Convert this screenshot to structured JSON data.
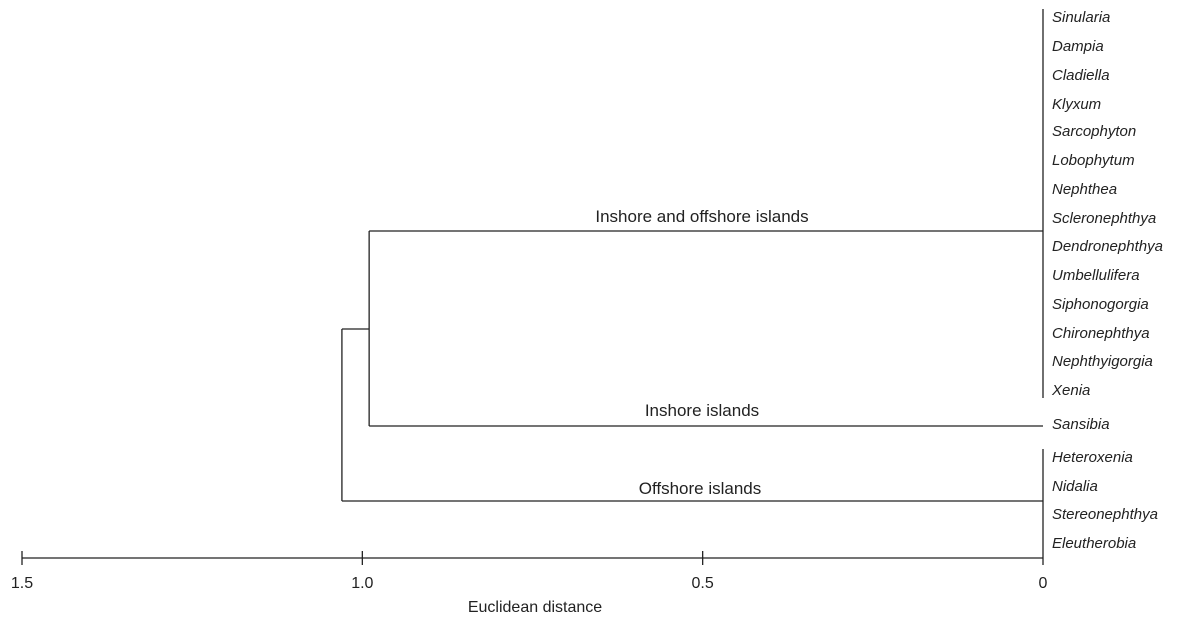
{
  "chart_data": {
    "type": "dendrogram",
    "xlabel": "Euclidean distance",
    "x_ticks": [
      "1.5",
      "1.0",
      "0.5",
      "0"
    ],
    "x_tick_values": [
      1.5,
      1.0,
      0.5,
      0
    ],
    "xlim": [
      1.5,
      0
    ],
    "taxa": [
      "Sinularia",
      "Dampia",
      "Cladiella",
      "Klyxum",
      "Sarcophyton",
      "Lobophytum",
      "Nephthea",
      "Scleronephthya",
      "Dendronephthya",
      "Umbellulifera",
      "Siphonogorgia",
      "Chironephthya",
      "Nephthyigorgia",
      "Xenia",
      "Sansibia",
      "Heteroxenia",
      "Nidalia",
      "Stereonephthya",
      "Eleutherobia"
    ],
    "clusters": [
      {
        "label": "Inshore and offshore islands",
        "members": [
          0,
          13
        ],
        "height": 0.0
      },
      {
        "label": "Inshore islands",
        "members": [
          14,
          14
        ],
        "height": 0.0
      },
      {
        "label": "Offshore islands",
        "members": [
          15,
          18
        ],
        "height": 0.0
      }
    ],
    "merges": [
      {
        "join": [
          "Inshore and offshore islands",
          "Inshore islands"
        ],
        "height": 0.99
      },
      {
        "join": [
          "merge-1",
          "Offshore islands"
        ],
        "height": 1.03
      }
    ]
  }
}
